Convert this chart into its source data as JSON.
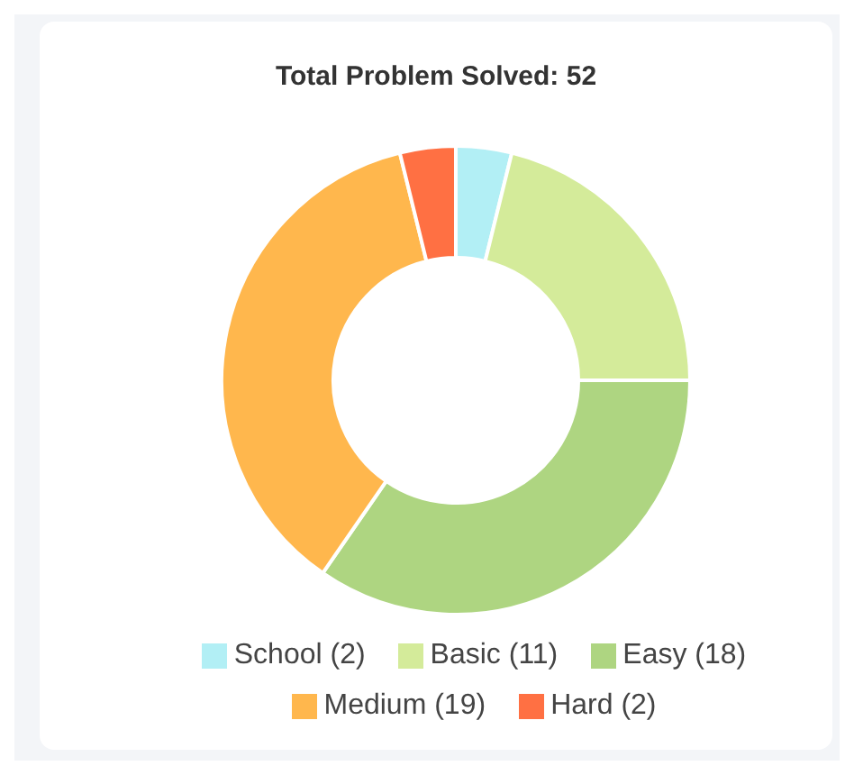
{
  "chart_data": {
    "type": "donut",
    "title": "Total Problem Solved: 52",
    "categories": [
      "School (2)",
      "Basic (11)",
      "Easy (18)",
      "Medium (19)",
      "Hard (2)"
    ],
    "values": [
      2,
      11,
      18,
      19,
      2
    ],
    "colors": [
      "#b2eff5",
      "#d4eb9a",
      "#aed581",
      "#ffb74d",
      "#ff7043"
    ],
    "legend": "bottom"
  }
}
